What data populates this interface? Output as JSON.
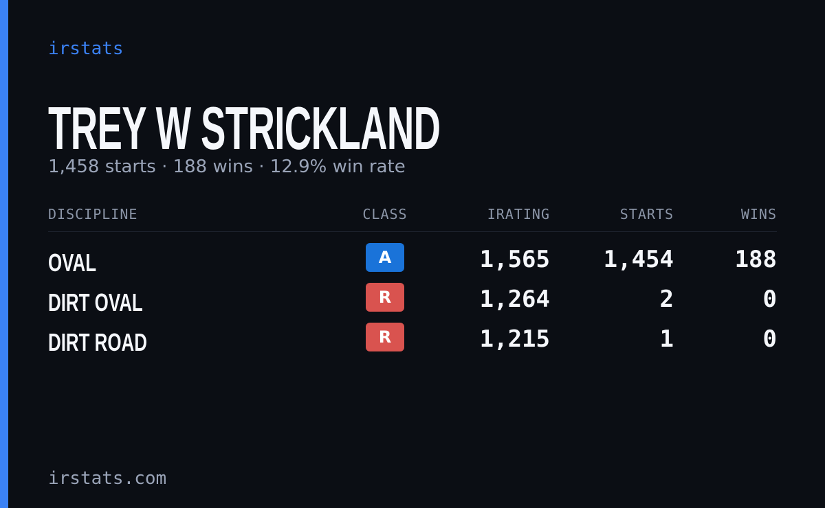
{
  "brand": "irstats",
  "profile": {
    "name": "TREY W STRICKLAND",
    "summary": "1,458 starts · 188 wins · 12.9% win rate"
  },
  "table": {
    "headers": [
      "DISCIPLINE",
      "CLASS",
      "IRATING",
      "STARTS",
      "WINS"
    ],
    "rows": [
      [
        "OVAL",
        "A",
        "1,565",
        "1,454",
        "188"
      ],
      [
        "DIRT OVAL",
        "R",
        "1,264",
        "2",
        "0"
      ],
      [
        "DIRT ROAD",
        "R",
        "1,215",
        "1",
        "0"
      ]
    ]
  },
  "footer": "irstats.com"
}
